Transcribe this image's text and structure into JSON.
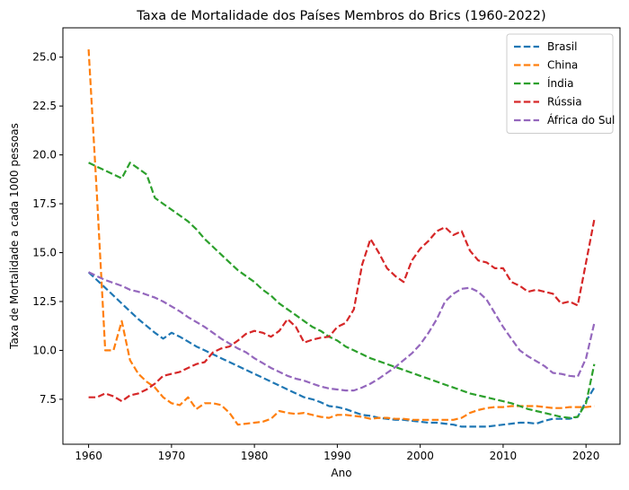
{
  "chart_data": {
    "type": "line",
    "title": "Taxa de Mortalidade dos Países Membros do Brics (1960-2022)",
    "xlabel": "Ano",
    "ylabel": "Taxa de Mortalidade a cada 1000 pessoas",
    "xlim": [
      1956.9,
      2024.1
    ],
    "ylim": [
      5.2,
      26.5
    ],
    "xticks": [
      1960,
      1970,
      1980,
      1990,
      2000,
      2010,
      2020
    ],
    "yticks": [
      7.5,
      10.0,
      12.5,
      15.0,
      17.5,
      20.0,
      22.5,
      25.0
    ],
    "grid": false,
    "legend_position": "top-right",
    "x": [
      1960,
      1961,
      1962,
      1963,
      1964,
      1965,
      1966,
      1967,
      1968,
      1969,
      1970,
      1971,
      1972,
      1973,
      1974,
      1975,
      1976,
      1977,
      1978,
      1979,
      1980,
      1981,
      1982,
      1983,
      1984,
      1985,
      1986,
      1987,
      1988,
      1989,
      1990,
      1991,
      1992,
      1993,
      1994,
      1995,
      1996,
      1997,
      1998,
      1999,
      2000,
      2001,
      2002,
      2003,
      2004,
      2005,
      2006,
      2007,
      2008,
      2009,
      2010,
      2011,
      2012,
      2013,
      2014,
      2015,
      2016,
      2017,
      2018,
      2019,
      2020,
      2021
    ],
    "series": [
      {
        "name": "Brasil",
        "color": "#1f77b4",
        "values": [
          14.0,
          13.6,
          13.2,
          12.8,
          12.4,
          12.0,
          11.6,
          11.25,
          10.9,
          10.6,
          10.9,
          10.7,
          10.45,
          10.2,
          10.0,
          9.8,
          9.6,
          9.4,
          9.2,
          9.0,
          8.8,
          8.6,
          8.4,
          8.2,
          8.0,
          7.8,
          7.6,
          7.5,
          7.35,
          7.15,
          7.1,
          7.0,
          6.85,
          6.7,
          6.65,
          6.55,
          6.5,
          6.45,
          6.45,
          6.4,
          6.35,
          6.3,
          6.3,
          6.25,
          6.2,
          6.1,
          6.1,
          6.1,
          6.1,
          6.15,
          6.2,
          6.25,
          6.3,
          6.3,
          6.25,
          6.4,
          6.5,
          6.5,
          6.5,
          6.6,
          7.4,
          8.1
        ]
      },
      {
        "name": "China",
        "color": "#ff7f0e",
        "values": [
          25.4,
          18.0,
          10.0,
          10.0,
          11.5,
          9.5,
          8.8,
          8.4,
          8.1,
          7.6,
          7.3,
          7.2,
          7.6,
          7.0,
          7.3,
          7.3,
          7.2,
          6.8,
          6.2,
          6.25,
          6.3,
          6.35,
          6.5,
          6.9,
          6.8,
          6.75,
          6.8,
          6.7,
          6.6,
          6.55,
          6.7,
          6.7,
          6.65,
          6.6,
          6.5,
          6.55,
          6.55,
          6.5,
          6.5,
          6.45,
          6.45,
          6.45,
          6.45,
          6.45,
          6.45,
          6.55,
          6.8,
          6.95,
          7.05,
          7.1,
          7.1,
          7.15,
          7.15,
          7.15,
          7.15,
          7.1,
          7.05,
          7.05,
          7.1,
          7.1,
          7.1,
          7.15
        ]
      },
      {
        "name": "Índia",
        "color": "#2ca02c",
        "values": [
          19.6,
          19.4,
          19.2,
          19.0,
          18.8,
          19.6,
          19.3,
          19.0,
          17.8,
          17.5,
          17.2,
          16.9,
          16.6,
          16.2,
          15.7,
          15.3,
          14.9,
          14.5,
          14.1,
          13.8,
          13.5,
          13.1,
          12.8,
          12.4,
          12.1,
          11.8,
          11.5,
          11.2,
          11.0,
          10.7,
          10.5,
          10.2,
          10.0,
          9.8,
          9.6,
          9.45,
          9.3,
          9.15,
          9.0,
          8.85,
          8.7,
          8.55,
          8.4,
          8.25,
          8.1,
          7.95,
          7.8,
          7.7,
          7.6,
          7.5,
          7.4,
          7.3,
          7.15,
          7.0,
          6.9,
          6.8,
          6.7,
          6.6,
          6.55,
          6.6,
          7.3,
          9.3
        ]
      },
      {
        "name": "Rússia",
        "color": "#d62728",
        "values": [
          7.6,
          7.6,
          7.8,
          7.65,
          7.4,
          7.7,
          7.8,
          8.0,
          8.3,
          8.7,
          8.8,
          8.9,
          9.1,
          9.3,
          9.4,
          9.9,
          10.1,
          10.2,
          10.5,
          10.85,
          11.0,
          10.9,
          10.7,
          11.0,
          11.6,
          11.2,
          10.4,
          10.55,
          10.65,
          10.7,
          11.2,
          11.4,
          12.1,
          14.4,
          15.7,
          15.0,
          14.2,
          13.8,
          13.5,
          14.6,
          15.2,
          15.6,
          16.1,
          16.3,
          15.9,
          16.1,
          15.1,
          14.6,
          14.5,
          14.2,
          14.2,
          13.5,
          13.3,
          13.0,
          13.1,
          13.0,
          12.9,
          12.4,
          12.5,
          12.3,
          14.5,
          16.7
        ]
      },
      {
        "name": "África do Sul",
        "color": "#9467bd",
        "values": [
          14.0,
          13.8,
          13.6,
          13.45,
          13.3,
          13.1,
          13.0,
          12.85,
          12.7,
          12.5,
          12.25,
          12.0,
          11.7,
          11.45,
          11.2,
          10.9,
          10.6,
          10.35,
          10.1,
          9.9,
          9.6,
          9.35,
          9.1,
          8.9,
          8.7,
          8.55,
          8.45,
          8.3,
          8.15,
          8.05,
          8.0,
          7.95,
          7.95,
          8.1,
          8.3,
          8.55,
          8.85,
          9.15,
          9.5,
          9.85,
          10.3,
          10.9,
          11.6,
          12.5,
          12.9,
          13.15,
          13.2,
          13.0,
          12.6,
          11.9,
          11.2,
          10.6,
          10.0,
          9.7,
          9.45,
          9.2,
          8.85,
          8.8,
          8.7,
          8.65,
          9.6,
          11.4
        ]
      }
    ]
  }
}
